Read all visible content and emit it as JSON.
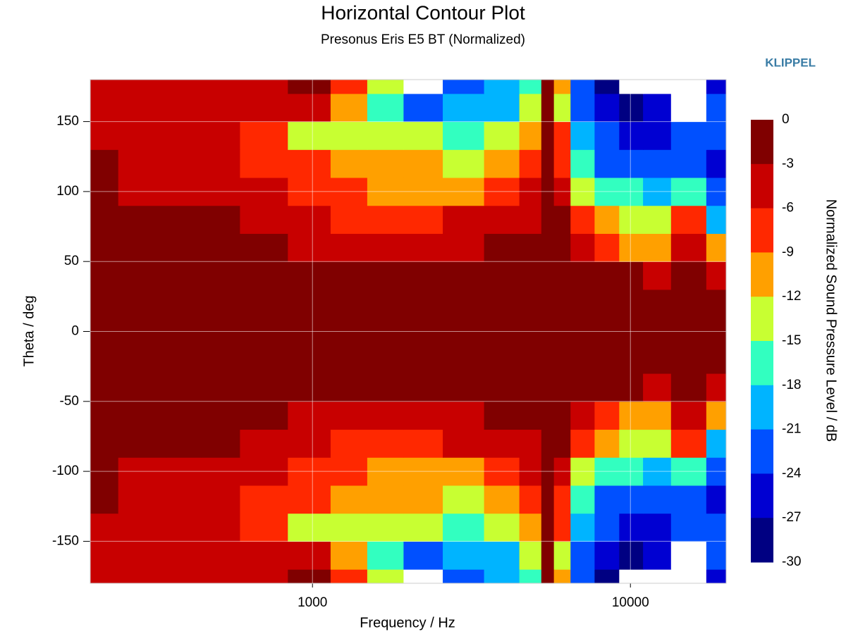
{
  "chart_data": {
    "type": "contour",
    "title": "Horizontal Contour Plot",
    "subtitle": "Presonus Eris E5 BT (Normalized)",
    "brand": "KLIPPEL",
    "x_label": "Frequency / Hz",
    "y_label": "Theta / deg",
    "colorbar_label": "Normalized Sound Pressure Level / dB",
    "x_scale": "log",
    "xlim": [
      200,
      20000
    ],
    "xticks": [
      1000,
      10000
    ],
    "ylim": [
      -180,
      180
    ],
    "yticks": [
      -150,
      -100,
      -50,
      0,
      50,
      100,
      150
    ],
    "grid": true,
    "levels": [
      0,
      -3,
      -6,
      -9,
      -12,
      -15,
      -18,
      -21,
      -24,
      -27,
      -30
    ],
    "level_colors": [
      "#800000",
      "#c80000",
      "#ff2800",
      "#ffa000",
      "#c8ff32",
      "#32ffc0",
      "#00b4ff",
      "#0050ff",
      "#0000d2",
      "#000082"
    ],
    "x": [
      200,
      300,
      400,
      500,
      700,
      1000,
      1300,
      1700,
      2200,
      3000,
      4000,
      5000,
      5500,
      6000,
      7000,
      8500,
      10000,
      12000,
      15000,
      20000
    ],
    "theta": [
      -180,
      -160,
      -140,
      -120,
      -100,
      -80,
      -60,
      -40,
      -20,
      0,
      20,
      40,
      60,
      80,
      100,
      120,
      140,
      160,
      180
    ],
    "z": [
      [
        -4,
        -4,
        -4,
        -4,
        -5,
        -2,
        -8,
        -15,
        -32,
        -22,
        -20,
        -16,
        -1,
        -12,
        -22,
        -28,
        -31,
        -31,
        -31,
        -25
      ],
      [
        -4,
        -4,
        -4,
        -4,
        -5,
        -5,
        -10,
        -17,
        -22,
        -20,
        -19,
        -14,
        -2,
        -14,
        -24,
        -27,
        -30,
        -26,
        -31,
        -24
      ],
      [
        -4,
        -4,
        -4,
        -5,
        -7,
        -14,
        -13,
        -15,
        -14,
        -16,
        -15,
        -10,
        -3,
        -9,
        -20,
        -24,
        -25,
        -26,
        -23,
        -22
      ],
      [
        -2.5,
        -4,
        -5,
        -6,
        -7,
        -9,
        -11,
        -12,
        -11,
        -13,
        -12,
        -8,
        -3,
        -7,
        -17,
        -22,
        -23,
        -23,
        -22,
        -25
      ],
      [
        -1.5,
        -4,
        -4,
        -5,
        -6,
        -7,
        -8,
        -10,
        -10,
        -10,
        -9,
        -6,
        -2,
        -5,
        -13,
        -16,
        -18,
        -20,
        -17,
        -24
      ],
      [
        -1,
        -1,
        -2,
        -3,
        -4,
        -5,
        -7,
        -7,
        -7,
        -6,
        -5,
        -4,
        -1,
        -3,
        -8,
        -11,
        -13,
        -14,
        -8,
        -20
      ],
      [
        -1,
        -1,
        -1,
        -1,
        -2,
        -3.5,
        -4,
        -4,
        -4,
        -4,
        -3,
        -2,
        -1,
        -2,
        -5,
        -8,
        -10,
        -12,
        -4,
        -12
      ],
      [
        -1,
        -1,
        -1,
        -1,
        -1,
        -1,
        -1,
        -1,
        -1,
        -1,
        -1,
        -1,
        -1,
        -1,
        -1,
        -2,
        -3,
        -4,
        -2,
        -5
      ],
      [
        -1,
        -1,
        -1,
        -1,
        -1,
        -1,
        -1,
        -1,
        -1,
        -1,
        -1,
        -1,
        -1,
        -1,
        -1,
        -1,
        -1,
        -1,
        -1,
        -2
      ],
      [
        -1,
        -1,
        -1,
        -1,
        -1,
        -1,
        -1,
        -1,
        -1,
        -1,
        -1,
        -1,
        -1,
        -1,
        -1,
        -1,
        -1,
        -1,
        -1,
        -1
      ],
      [
        -1,
        -1,
        -1,
        -1,
        -1,
        -1,
        -1,
        -1,
        -1,
        -1,
        -1,
        -1,
        -1,
        -1,
        -1,
        -1,
        -1,
        -1,
        -1,
        -2
      ],
      [
        -1,
        -1,
        -1,
        -1,
        -1,
        -1,
        -1,
        -1,
        -1,
        -1,
        -1,
        -1,
        -1,
        -1,
        -1,
        -2,
        -3,
        -4,
        -2,
        -5
      ],
      [
        -1,
        -1,
        -1,
        -1,
        -2,
        -3.5,
        -4,
        -4,
        -4,
        -4,
        -3,
        -2,
        -1,
        -2,
        -5,
        -8,
        -10,
        -12,
        -4,
        -12
      ],
      [
        -1,
        -1,
        -2,
        -3,
        -4,
        -5,
        -7,
        -7,
        -7,
        -6,
        -5,
        -4,
        -1,
        -3,
        -8,
        -11,
        -13,
        -14,
        -8,
        -20
      ],
      [
        -1.5,
        -4,
        -4,
        -5,
        -6,
        -7,
        -8,
        -10,
        -10,
        -10,
        -9,
        -6,
        -2,
        -5,
        -13,
        -16,
        -18,
        -20,
        -17,
        -24
      ],
      [
        -2.5,
        -4,
        -5,
        -6,
        -7,
        -9,
        -11,
        -12,
        -11,
        -13,
        -12,
        -8,
        -3,
        -7,
        -17,
        -22,
        -23,
        -23,
        -22,
        -25
      ],
      [
        -4,
        -4,
        -4,
        -5,
        -7,
        -14,
        -13,
        -15,
        -14,
        -16,
        -15,
        -10,
        -3,
        -9,
        -20,
        -24,
        -25,
        -26,
        -23,
        -22
      ],
      [
        -4,
        -4,
        -4,
        -4,
        -5,
        -5,
        -10,
        -17,
        -22,
        -20,
        -19,
        -14,
        -2,
        -14,
        -24,
        -27,
        -30,
        -26,
        -31,
        -24
      ],
      [
        -4,
        -4,
        -4,
        -4,
        -5,
        -2,
        -8,
        -15,
        -32,
        -22,
        -20,
        -16,
        -1,
        -12,
        -22,
        -28,
        -31,
        -31,
        -31,
        -25
      ]
    ]
  }
}
